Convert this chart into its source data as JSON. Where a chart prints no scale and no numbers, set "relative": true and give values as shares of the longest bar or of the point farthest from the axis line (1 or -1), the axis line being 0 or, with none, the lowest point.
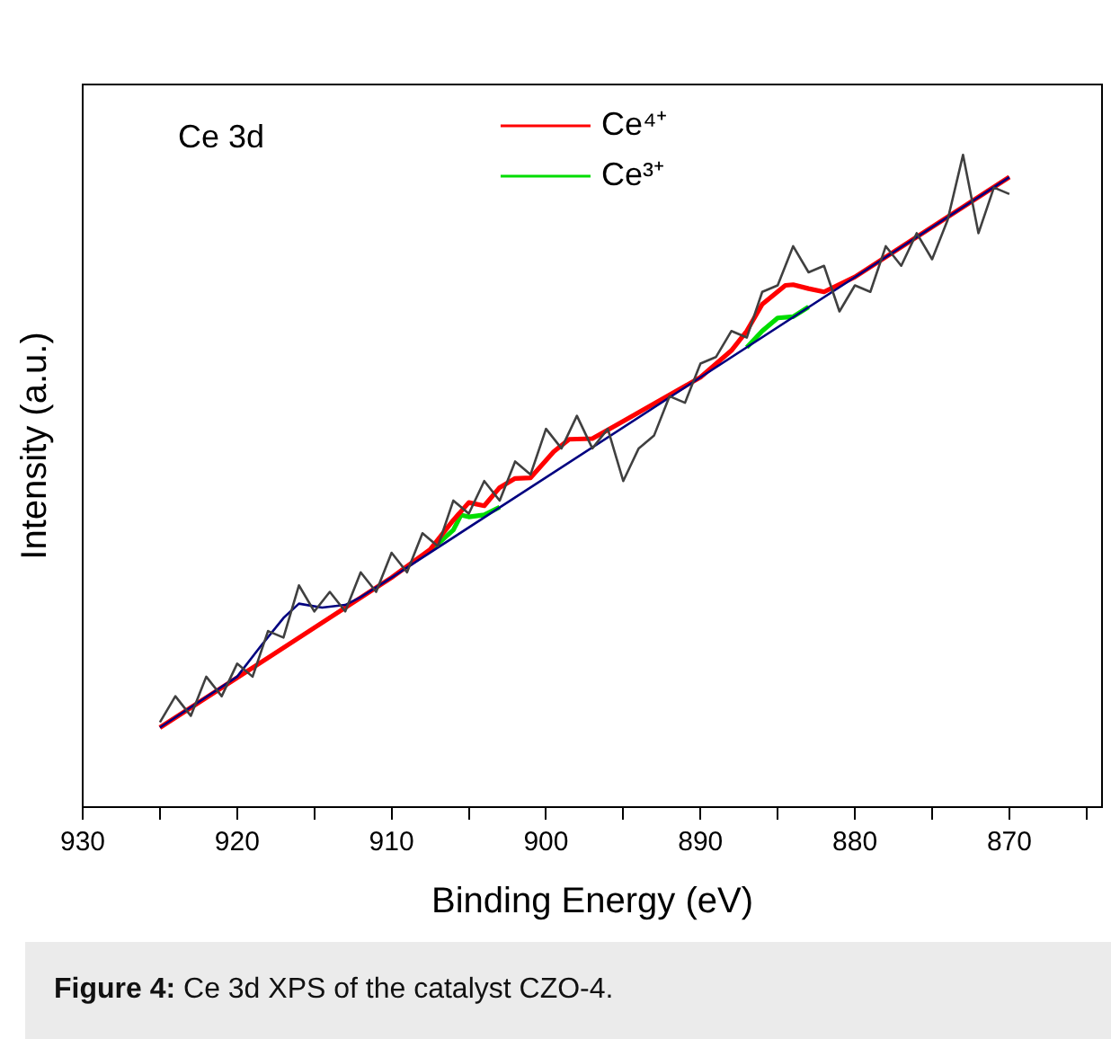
{
  "chart_data": {
    "type": "line",
    "relative": true,
    "xlabel": "Binding Energy (eV)",
    "ylabel": "Intensity (a.u.)",
    "xlim": [
      930,
      864
    ],
    "xticks": [
      930,
      {
        "value": 925,
        "label": null
      },
      920,
      {
        "value": 915,
        "label": null
      },
      910,
      {
        "value": 905,
        "label": null
      },
      900,
      {
        "value": 895,
        "label": null
      },
      890,
      {
        "value": 885,
        "label": null
      },
      880,
      {
        "value": 875,
        "label": null
      },
      870,
      {
        "value": 865,
        "label": null
      }
    ],
    "grid": false,
    "legend": "top",
    "marker": "none",
    "line_style": "solid",
    "annotations": [
      "Ce 3d",
      "Figure 4: Ce 3d XPS of the catalyst CZO-4."
    ],
    "series": [
      {
        "color": "#404040",
        "x": [
          925,
          924,
          923,
          922,
          921,
          920,
          919,
          918,
          917,
          916,
          915,
          914,
          913,
          912,
          911,
          910,
          909,
          908,
          907,
          906,
          905,
          904,
          903,
          902,
          901,
          900,
          899,
          898,
          897,
          896,
          895,
          894,
          893,
          892,
          891,
          890,
          889,
          888,
          887,
          886,
          885,
          884,
          883,
          882,
          881,
          880,
          879,
          878,
          877,
          876,
          875,
          874,
          873,
          872,
          871,
          870
        ],
        "values": [
          0.13,
          0.17,
          0.14,
          0.2,
          0.17,
          0.22,
          0.2,
          0.27,
          0.26,
          0.34,
          0.3,
          0.33,
          0.3,
          0.36,
          0.33,
          0.39,
          0.36,
          0.42,
          0.4,
          0.47,
          0.45,
          0.5,
          0.47,
          0.53,
          0.51,
          0.58,
          0.55,
          0.6,
          0.55,
          0.58,
          0.5,
          0.55,
          0.57,
          0.63,
          0.62,
          0.68,
          0.69,
          0.73,
          0.72,
          0.79,
          0.8,
          0.86,
          0.82,
          0.83,
          0.76,
          0.8,
          0.79,
          0.86,
          0.83,
          0.88,
          0.84,
          0.9,
          1.0,
          0.88,
          0.95,
          0.94
        ]
      },
      {
        "color": "#000080",
        "x": [
          925,
          920,
          918.5,
          917,
          916,
          914.5,
          913,
          912,
          910,
          870
        ],
        "values": [
          0.122,
          0.2,
          0.246,
          0.29,
          0.312,
          0.306,
          0.31,
          0.322,
          0.352,
          0.966
        ]
      },
      {
        "name": "Ce⁴⁺",
        "color": "#ff0000",
        "x": [
          925,
          918,
          910,
          907.5,
          906,
          905,
          904,
          903,
          902,
          901,
          899.5,
          898.5,
          897,
          895.5,
          890,
          888,
          887,
          886,
          884.5,
          884,
          883,
          882,
          880,
          870
        ],
        "values": [
          0.122,
          0.229,
          0.352,
          0.395,
          0.44,
          0.467,
          0.462,
          0.49,
          0.504,
          0.505,
          0.545,
          0.564,
          0.565,
          0.585,
          0.659,
          0.7,
          0.73,
          0.771,
          0.8,
          0.801,
          0.795,
          0.79,
          0.813,
          0.966
        ]
      },
      {
        "name": "Ce³⁺",
        "color": "#00dd00",
        "x": [
          907.5,
          906,
          905.5,
          905,
          904,
          903,
          895,
          887,
          886,
          885,
          884,
          883
        ],
        "values": [
          0.393,
          0.425,
          0.448,
          0.445,
          0.448,
          0.46,
          null,
          0.705,
          0.73,
          0.75,
          0.752,
          0.767
        ]
      }
    ]
  }
}
